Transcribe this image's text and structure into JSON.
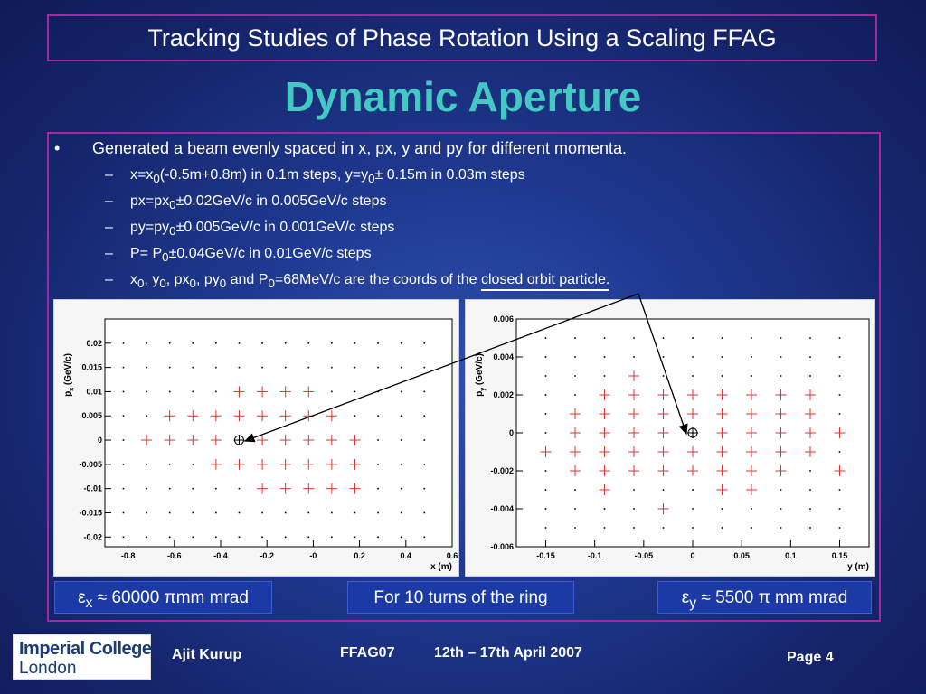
{
  "header": {
    "title": "Tracking Studies of Phase Rotation Using a Scaling FFAG"
  },
  "heading": "Dynamic Aperture",
  "bullet": {
    "marker": "•",
    "text": "Generated a beam evenly spaced in x, px, y and py for different momenta."
  },
  "subbullets": {
    "dash": "–",
    "s1": {
      "a": "x=x",
      "sub1": "0",
      "b": "(-0.5m+0.8m) in 0.1m steps, y=y",
      "sub2": "0",
      "c": "± 0.15m in 0.03m steps"
    },
    "s2": {
      "a": "px=px",
      "sub1": "0",
      "b": "±0.02GeV/c in 0.005GeV/c steps"
    },
    "s3": {
      "a": "py=py",
      "sub1": "0",
      "b": "±0.005GeV/c in 0.001GeV/c steps"
    },
    "s4": {
      "a": "P= P",
      "sub1": "0",
      "b": "±0.04GeV/c in 0.01GeV/c steps"
    },
    "s5": {
      "a": "x",
      "s_a": "0",
      "b": ", y",
      "s_b": "0",
      "c": ", px",
      "s_c": "0",
      "d": ", py",
      "s_d": "0",
      "e": " and P",
      "s_e": "0",
      "f": "=68MeV/c are the coords of the ",
      "g": "closed orbit particle."
    }
  },
  "chart_data": [
    {
      "type": "scatter",
      "xlabel": "x (m)",
      "ylabel_main": "p",
      "ylabel_sub": "x",
      "ylabel_unit": " (GeV/c)",
      "xlim": [
        -0.9,
        0.6
      ],
      "ylim": [
        -0.022,
        0.025
      ],
      "xticks": [
        -0.8,
        -0.6,
        -0.4,
        -0.2,
        0,
        0.2,
        0.4,
        0.6
      ],
      "xtick_labels": [
        "-0.8",
        "-0.6",
        "-0.4",
        "-0.2",
        "-0",
        "0.2",
        "0.4",
        "0.6"
      ],
      "yticks": [
        0.02,
        0.015,
        0.01,
        0.005,
        0,
        -0.005,
        -0.01,
        -0.015,
        -0.02
      ],
      "ytick_labels": [
        "0.02",
        "0.015",
        "0.01",
        "0.005",
        "0",
        "-0.005",
        "-0.01",
        "-0.015",
        "-0.02"
      ],
      "grid_x": [
        -0.82,
        -0.72,
        -0.62,
        -0.52,
        -0.42,
        -0.32,
        -0.22,
        -0.12,
        -0.02,
        0.08,
        0.18,
        0.28,
        0.38,
        0.48
      ],
      "grid_y": [
        0.02,
        0.015,
        0.01,
        0.005,
        0,
        -0.005,
        -0.01,
        -0.015,
        -0.02
      ],
      "stable": [
        [
          -0.32,
          0.01
        ],
        [
          -0.22,
          0.01
        ],
        [
          -0.12,
          0.01
        ],
        [
          -0.02,
          0.01
        ],
        [
          -0.62,
          0.005
        ],
        [
          -0.52,
          0.005
        ],
        [
          -0.42,
          0.005
        ],
        [
          -0.32,
          0.005
        ],
        [
          -0.22,
          0.005
        ],
        [
          -0.12,
          0.005
        ],
        [
          -0.02,
          0.005
        ],
        [
          0.08,
          0.005
        ],
        [
          -0.72,
          0
        ],
        [
          -0.62,
          0
        ],
        [
          -0.52,
          0
        ],
        [
          -0.42,
          0
        ],
        [
          -0.22,
          0
        ],
        [
          -0.12,
          0
        ],
        [
          -0.02,
          0
        ],
        [
          0.08,
          0
        ],
        [
          0.18,
          0
        ],
        [
          -0.42,
          -0.005
        ],
        [
          -0.32,
          -0.005
        ],
        [
          -0.22,
          -0.005
        ],
        [
          -0.12,
          -0.005
        ],
        [
          -0.02,
          -0.005
        ],
        [
          0.08,
          -0.005
        ],
        [
          0.18,
          -0.005
        ],
        [
          -0.22,
          -0.01
        ],
        [
          -0.12,
          -0.01
        ],
        [
          -0.02,
          -0.01
        ],
        [
          0.08,
          -0.01
        ],
        [
          0.18,
          -0.01
        ]
      ],
      "closed_orbit": [
        -0.32,
        0
      ]
    },
    {
      "type": "scatter",
      "xlabel": "y (m)",
      "ylabel_main": "p",
      "ylabel_sub": "y",
      "ylabel_unit": " (GeV/c)",
      "xlim": [
        -0.18,
        0.18
      ],
      "ylim": [
        -0.006,
        0.006
      ],
      "xticks": [
        -0.15,
        -0.1,
        -0.05,
        0,
        0.05,
        0.1,
        0.15
      ],
      "xtick_labels": [
        "-0.15",
        "-0.1",
        "-0.05",
        "0",
        "0.05",
        "0.1",
        "0.15"
      ],
      "yticks": [
        0.006,
        0.004,
        0.002,
        0,
        -0.002,
        -0.004,
        -0.006
      ],
      "ytick_labels": [
        "0.006",
        "0.004",
        "0.002",
        "0",
        "-0.002",
        "-0.004",
        "-0.006"
      ],
      "grid_x": [
        -0.15,
        -0.12,
        -0.09,
        -0.06,
        -0.03,
        0,
        0.03,
        0.06,
        0.09,
        0.12,
        0.15
      ],
      "grid_y": [
        0.005,
        0.004,
        0.003,
        0.002,
        0.001,
        0,
        -0.001,
        -0.002,
        -0.003,
        -0.004,
        -0.005
      ],
      "stable": [
        [
          -0.06,
          0.003
        ],
        [
          -0.09,
          0.002
        ],
        [
          -0.06,
          0.002
        ],
        [
          -0.03,
          0.002
        ],
        [
          0,
          0.002
        ],
        [
          0.03,
          0.002
        ],
        [
          0.06,
          0.002
        ],
        [
          0.09,
          0.002
        ],
        [
          0.12,
          0.002
        ],
        [
          -0.12,
          0.001
        ],
        [
          -0.09,
          0.001
        ],
        [
          -0.06,
          0.001
        ],
        [
          -0.03,
          0.001
        ],
        [
          0,
          0.001
        ],
        [
          0.03,
          0.001
        ],
        [
          0.06,
          0.001
        ],
        [
          0.09,
          0.001
        ],
        [
          0.12,
          0.001
        ],
        [
          -0.12,
          0
        ],
        [
          -0.09,
          0
        ],
        [
          -0.06,
          0
        ],
        [
          -0.03,
          0
        ],
        [
          0.03,
          0
        ],
        [
          0.06,
          0
        ],
        [
          0.09,
          0
        ],
        [
          0.12,
          0
        ],
        [
          0.15,
          0
        ],
        [
          -0.15,
          -0.001
        ],
        [
          -0.12,
          -0.001
        ],
        [
          -0.09,
          -0.001
        ],
        [
          -0.06,
          -0.001
        ],
        [
          -0.03,
          -0.001
        ],
        [
          0,
          -0.001
        ],
        [
          0.03,
          -0.001
        ],
        [
          0.06,
          -0.001
        ],
        [
          0.09,
          -0.001
        ],
        [
          0.12,
          -0.001
        ],
        [
          -0.12,
          -0.002
        ],
        [
          -0.09,
          -0.002
        ],
        [
          -0.06,
          -0.002
        ],
        [
          -0.03,
          -0.002
        ],
        [
          0,
          -0.002
        ],
        [
          0.03,
          -0.002
        ],
        [
          0.06,
          -0.002
        ],
        [
          0.09,
          -0.002
        ],
        [
          0.15,
          -0.002
        ],
        [
          -0.09,
          -0.003
        ],
        [
          0.03,
          -0.003
        ],
        [
          0.06,
          -0.003
        ],
        [
          -0.03,
          -0.004
        ]
      ],
      "closed_orbit": [
        0,
        0
      ]
    }
  ],
  "info": {
    "emit_x": {
      "eps": "ε",
      "sub": "x",
      "rest": " ≈ 60000 ",
      "pi": "π",
      "unit": "mm mrad"
    },
    "turns": "For 10 turns of the ring",
    "emit_y": {
      "eps": "ε",
      "sub": "y",
      "rest": " ≈ 5500 ",
      "pi": "π",
      "unit": " mm mrad"
    }
  },
  "footer": {
    "logo_line1": "Imperial College",
    "logo_line2": "London",
    "author": "Ajit Kurup",
    "conference": "FFAG07",
    "dates": "12th – 17th April 2007",
    "page": "Page 4"
  },
  "colors": {
    "accent_border": "#a02aa0",
    "heading": "#44c8c4",
    "marker": "#e03030"
  }
}
